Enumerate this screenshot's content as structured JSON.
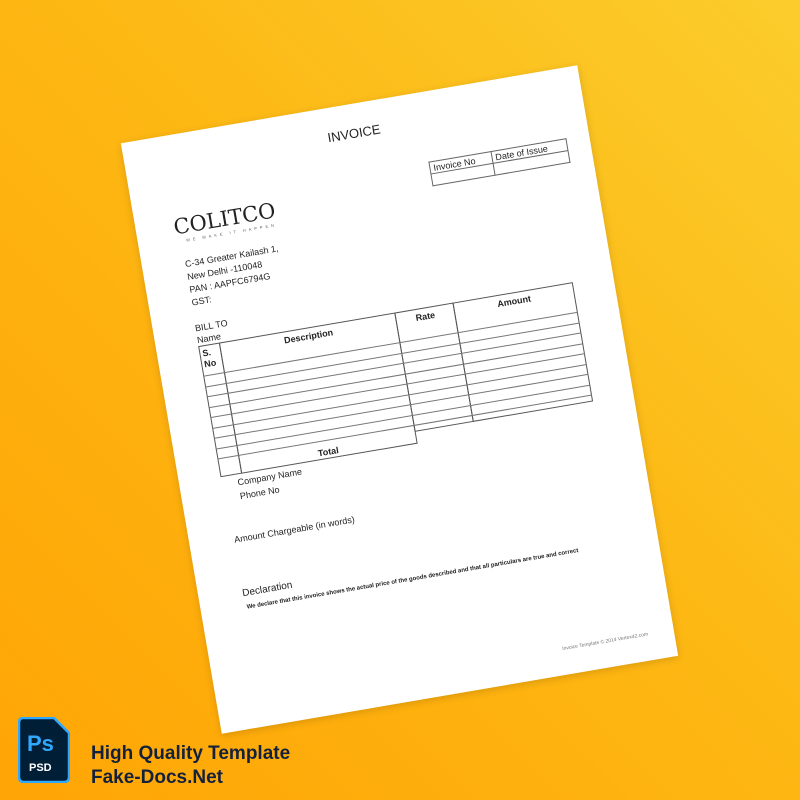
{
  "document": {
    "title": "INVOICE",
    "meta_table": {
      "headers": [
        "Invoice No",
        "Date of Issue"
      ],
      "values": [
        "",
        ""
      ]
    },
    "logo": {
      "name": "COLITCO",
      "tagline": "WE MAKE IT HAPPEN"
    },
    "address": [
      "C-34 Greater Kailash 1,",
      "New Delhi -110048",
      "PAN : AAPFC6794G",
      "GST:"
    ],
    "bill_to": {
      "label": "BILL TO",
      "name_label": "Name"
    },
    "items_table": {
      "headers": {
        "sno": "S. No",
        "description": "Description",
        "rate": "Rate",
        "amount": "Amount"
      },
      "total_label": "Total"
    },
    "company_name_label": "Company Name",
    "phone_label": "Phone No",
    "amount_words_label": "Amount Chargeable (in words)",
    "declaration_heading": "Declaration",
    "declaration_text": "We declare that this invoice shows the actual price of the goods described and that all particulars are true and correct",
    "footer": "Invoice Template © 2014 Vertex42.com"
  },
  "promo": {
    "badge_icon": "photoshop-psd-icon",
    "badge_ps": "Ps",
    "badge_psd": "PSD",
    "line1": "High Quality Template",
    "line2": "Fake-Docs.Net"
  },
  "colors": {
    "background_top": "#fbcd2c",
    "background_bottom": "#ffa505",
    "promo_text": "#14213d",
    "ps_blue": "#31a8ff"
  }
}
